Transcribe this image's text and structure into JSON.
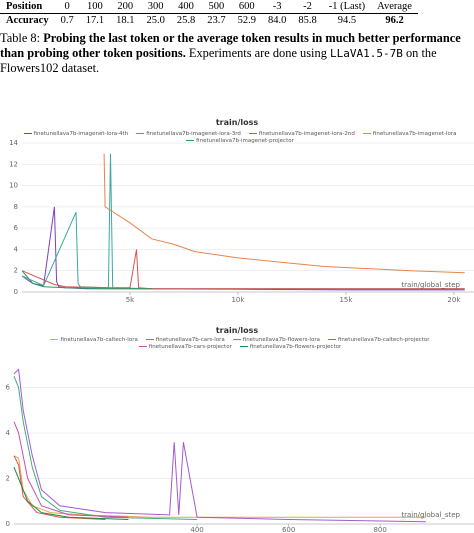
{
  "table": {
    "rows": [
      [
        "Position",
        "0",
        "100",
        "200",
        "300",
        "400",
        "500",
        "600",
        "-3",
        "-2",
        "-1 (Last)",
        "Average"
      ],
      [
        "Accuracy",
        "0.7",
        "17.1",
        "18.1",
        "25.0",
        "25.8",
        "23.7",
        "52.9",
        "84.0",
        "85.8",
        "94.5",
        "96.2"
      ]
    ]
  },
  "caption": {
    "label": "Table 8:",
    "bold": "Probing the last token or the average token results in much better performance than probing other token positions.",
    "text1": "Experiments are done using",
    "model": "LLaVA1.5-7B",
    "text2": "on the Flowers102 dataset."
  },
  "chart_data": [
    {
      "type": "line",
      "title": "train/loss",
      "x_label": "train/global_step",
      "xlim": [
        0,
        20930
      ],
      "ylim": [
        0,
        14.6
      ],
      "xticks": [
        {
          "value": 5000,
          "label": "5k"
        },
        {
          "value": 10000,
          "label": "10k"
        },
        {
          "value": 15000,
          "label": "15k"
        },
        {
          "value": 20000,
          "label": "20k"
        }
      ],
      "yticks": [
        0,
        2,
        4,
        6,
        8,
        10,
        12,
        14
      ],
      "grid": true,
      "series": [
        {
          "name": "finetunellava7b-imagenet-lora-4th",
          "color": "#7e3fb8",
          "x": [
            0,
            500,
            1000,
            1500,
            1600,
            1700,
            2000,
            3000,
            5000,
            10000,
            15000,
            20500
          ],
          "values": [
            1.5,
            0.8,
            0.6,
            8,
            1,
            0.5,
            0.4,
            0.3,
            0.3,
            0.25,
            0.2,
            0.2
          ]
        },
        {
          "name": "finetunellava7b-imagenet-lora-3rd",
          "color": "#3aa99f",
          "x": [
            0,
            1000,
            2500,
            2600,
            2700,
            4000,
            4100,
            4200,
            6000,
            10000,
            20500
          ],
          "values": [
            1.5,
            0.6,
            7.5,
            0.8,
            0.5,
            0.4,
            13,
            0.4,
            0.3,
            0.3,
            0.3
          ]
        },
        {
          "name": "finetunellava7b-imagenet-lora-2nd",
          "color": "#d9534f",
          "x": [
            0,
            1500,
            2000,
            4000,
            5000,
            5300,
            5400,
            6000,
            10000,
            20500
          ],
          "values": [
            2,
            0.7,
            0.5,
            0.4,
            0.4,
            4,
            0.4,
            0.3,
            0.3,
            0.3
          ]
        },
        {
          "name": "finetunellava7b-imagenet-lora",
          "color": "#e8834e",
          "x": [
            3800,
            3850,
            4000,
            5000,
            6000,
            7000,
            8000,
            10000,
            12000,
            14000,
            16000,
            18000,
            20500
          ],
          "values": [
            13,
            8,
            7.8,
            6.5,
            5,
            4.5,
            3.8,
            3.2,
            2.8,
            2.4,
            2.2,
            2,
            1.8
          ]
        },
        {
          "name": "finetunellava7b-imagenet-projector",
          "color": "#2e9a5e",
          "x": [
            0,
            500,
            1000,
            2000,
            4000,
            6000
          ],
          "values": [
            2,
            0.8,
            0.5,
            0.4,
            0.3,
            0.3
          ]
        }
      ]
    },
    {
      "type": "line",
      "title": "train/loss",
      "x_label": "train/global_step",
      "xlim": [
        0,
        1005
      ],
      "ylim": [
        0,
        7.3
      ],
      "xticks": [
        400,
        600,
        800
      ],
      "yticks": [
        0,
        2,
        4,
        6
      ],
      "grid": true,
      "series": [
        {
          "name": "finetunellava7b-caltech-lora",
          "color": "#e8a44e",
          "x": [
            0,
            10,
            20,
            40,
            80,
            150,
            300,
            500,
            900
          ],
          "values": [
            3,
            2.9,
            1.5,
            0.8,
            0.5,
            0.4,
            0.3,
            0.3,
            0.3
          ]
        },
        {
          "name": "finetunellava7b-cars-lora",
          "color": "#a35bd1",
          "x": [
            0,
            10,
            20,
            40,
            60,
            100,
            200,
            340,
            350,
            360,
            370,
            400,
            600,
            900
          ],
          "values": [
            6.6,
            6.8,
            5,
            3,
            1.5,
            0.8,
            0.5,
            0.4,
            3.6,
            0.4,
            3.6,
            0.3,
            0.2,
            0.1
          ]
        },
        {
          "name": "finetunellava7b-flowers-lora",
          "color": "#3fae7a",
          "x": [
            0,
            10,
            20,
            40,
            60,
            100,
            200,
            400
          ],
          "values": [
            6.5,
            6,
            4.5,
            2.5,
            1.2,
            0.6,
            0.3,
            0.2
          ]
        },
        {
          "name": "finetunellava7b-caltech-projector",
          "color": "#d9534f",
          "x": [
            0,
            10,
            20,
            50,
            100,
            200
          ],
          "values": [
            3,
            2.6,
            1.2,
            0.5,
            0.3,
            0.2
          ]
        },
        {
          "name": "finetunellava7b-cars-projector",
          "color": "#c94fb0",
          "x": [
            0,
            10,
            30,
            60,
            120,
            250
          ],
          "values": [
            4.5,
            4,
            2,
            0.8,
            0.4,
            0.3
          ]
        },
        {
          "name": "finetunellava7b-flowers-projector",
          "color": "#1f8a4c",
          "x": [
            0,
            10,
            30,
            60,
            120,
            250
          ],
          "values": [
            2.5,
            2,
            1,
            0.5,
            0.3,
            0.2
          ]
        }
      ]
    }
  ]
}
